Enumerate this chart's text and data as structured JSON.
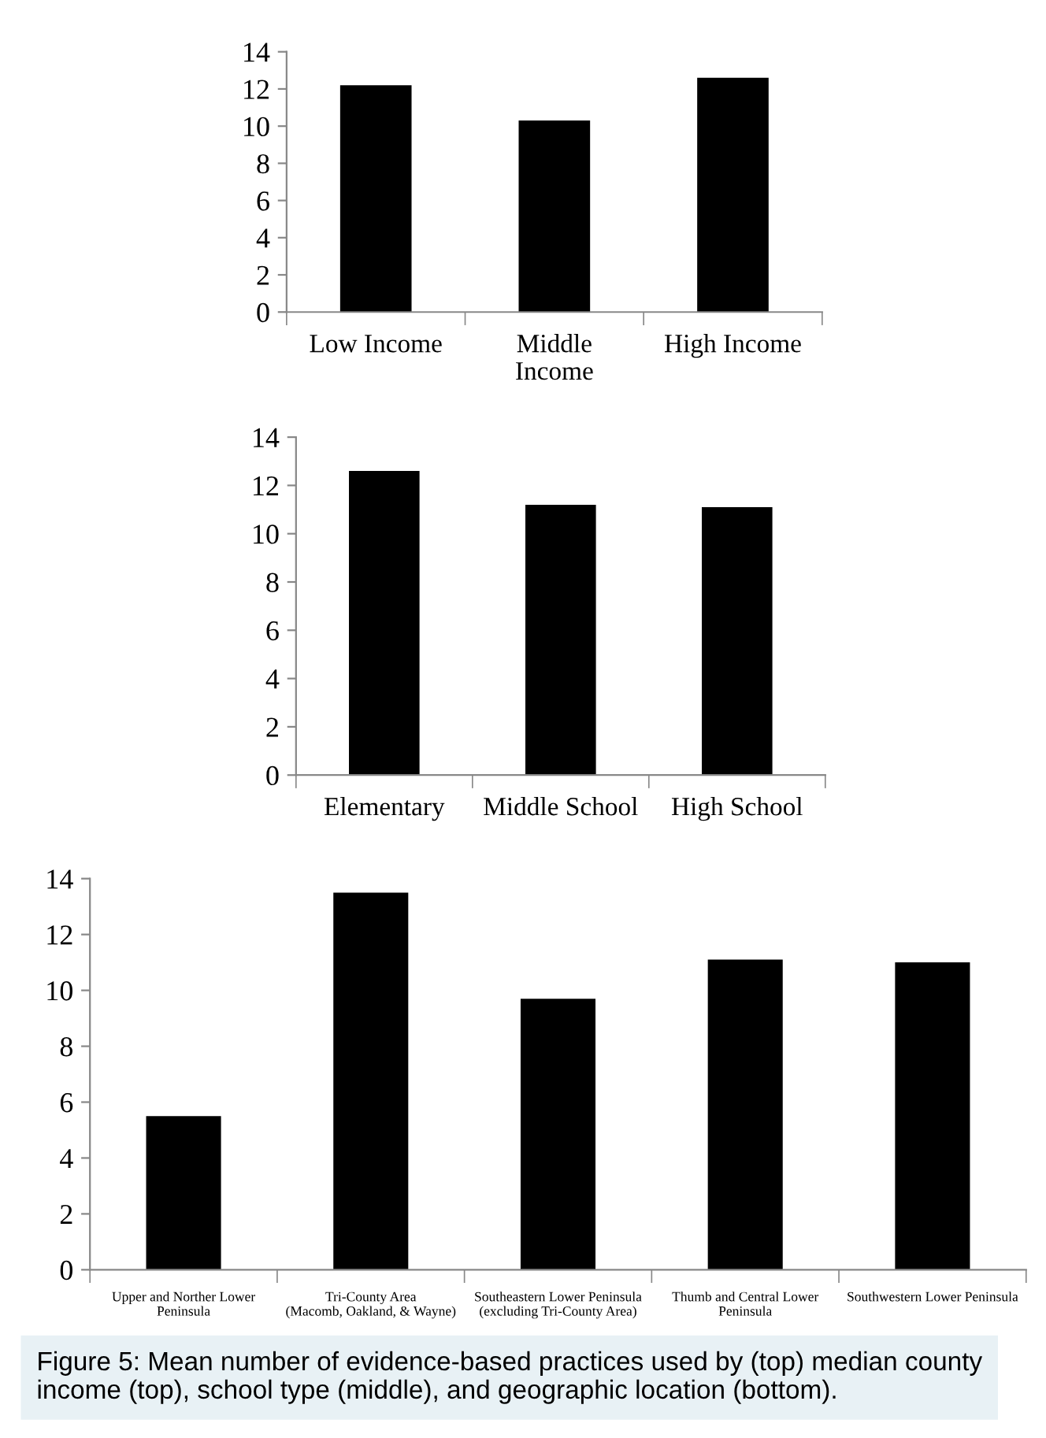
{
  "chart_data": [
    {
      "type": "bar",
      "categories": [
        "Low Income",
        "Middle\nIncome",
        "High Income"
      ],
      "values": [
        12.2,
        10.3,
        12.6
      ],
      "color": "#000000",
      "ylim": [
        0,
        14
      ],
      "yticks": [
        0,
        2,
        4,
        6,
        8,
        10,
        12,
        14
      ],
      "grid": false,
      "legend": false
    },
    {
      "type": "bar",
      "categories": [
        "Elementary",
        "Middle School",
        "High School"
      ],
      "values": [
        12.6,
        11.2,
        11.1
      ],
      "color": "#000000",
      "ylim": [
        0,
        14
      ],
      "yticks": [
        0,
        2,
        4,
        6,
        8,
        10,
        12,
        14
      ],
      "grid": false,
      "legend": false
    },
    {
      "type": "bar",
      "categories": [
        "Upper and Norther Lower\nPeninsula",
        "Tri-County Area\n(Macomb, Oakland, & Wayne)",
        "Southeastern Lower Peninsula\n(excluding Tri-County Area)",
        "Thumb and Central Lower\nPeninsula",
        "Southwestern Lower Peninsula"
      ],
      "values": [
        5.5,
        13.5,
        9.7,
        11.1,
        11.0
      ],
      "color": "#000000",
      "ylim": [
        0,
        14
      ],
      "yticks": [
        0,
        2,
        4,
        6,
        8,
        10,
        12,
        14
      ],
      "grid": false,
      "legend": false,
      "annotations": [
        "Figure 5: Mean number of evidence-based practices used by (top) median county income (top), school type (middle), and geographic location (bottom)."
      ]
    }
  ]
}
